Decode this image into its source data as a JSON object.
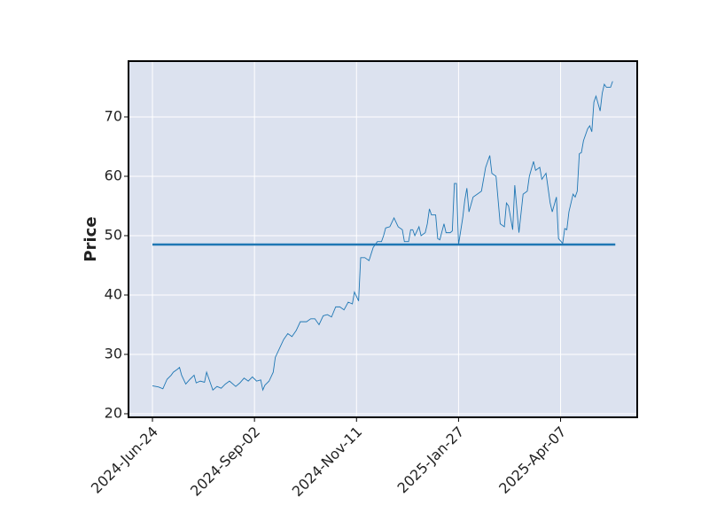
{
  "chart_data": {
    "type": "line",
    "ylabel": "Price",
    "x": [
      0,
      3,
      5,
      7,
      9,
      10,
      12,
      13,
      14,
      16,
      18,
      20,
      21,
      23,
      25,
      26,
      28,
      29,
      31,
      33,
      35,
      37,
      40,
      42,
      44,
      46,
      48,
      50,
      52,
      53,
      54,
      56,
      58,
      59,
      61,
      63,
      65,
      67,
      69,
      71,
      74,
      76,
      78,
      80,
      82,
      84,
      86,
      88,
      90,
      92,
      94,
      96,
      97,
      99,
      100,
      102,
      104,
      106,
      108,
      110,
      111,
      112,
      114,
      116,
      118,
      120,
      121,
      123,
      124,
      125,
      126,
      128,
      129,
      131,
      132,
      133,
      134,
      136,
      137,
      138,
      140,
      141,
      143,
      144,
      145,
      146,
      147,
      149,
      150,
      151,
      152,
      154,
      156,
      158,
      160,
      161,
      162,
      163,
      165,
      167,
      169,
      170,
      171,
      173,
      174,
      176,
      178,
      180,
      181,
      183,
      184,
      186,
      187,
      189,
      191,
      192,
      194,
      195,
      197,
      198,
      199,
      200,
      202,
      203,
      204,
      205,
      206,
      207,
      209,
      210,
      211,
      212,
      213,
      215,
      216,
      217,
      218,
      220,
      221
    ],
    "values": [
      24.7,
      24.5,
      24.2,
      25.8,
      26.5,
      27,
      27.5,
      27.8,
      26.5,
      25,
      25.8,
      26.5,
      25.2,
      25.5,
      25.3,
      27,
      25,
      24,
      24.6,
      24.3,
      25,
      25.5,
      24.6,
      25.2,
      26,
      25.5,
      26.2,
      25.5,
      25.7,
      24,
      24.8,
      25.5,
      27,
      29.5,
      31,
      32.5,
      33.5,
      33,
      34,
      35.5,
      35.5,
      36,
      36,
      35,
      36.5,
      36.7,
      36.3,
      38,
      38,
      37.5,
      38.8,
      38.5,
      40.5,
      39,
      46.3,
      46.3,
      45.8,
      48,
      49,
      49,
      50,
      51.3,
      51.5,
      53,
      51.5,
      51,
      49,
      49,
      51,
      51,
      50,
      51.5,
      50,
      50.5,
      52,
      54.5,
      53.5,
      53.5,
      49.5,
      49.3,
      52,
      50.5,
      50.5,
      50.8,
      58.8,
      58.8,
      48.5,
      53,
      56,
      58,
      54,
      56.5,
      57,
      57.5,
      61.5,
      62.5,
      63.5,
      60.5,
      60,
      52,
      51.5,
      55.5,
      55,
      51,
      58.5,
      50.5,
      57,
      57.5,
      60,
      62.5,
      61,
      61.5,
      59.5,
      60.5,
      55.5,
      54,
      56.5,
      49.5,
      48.7,
      51.2,
      51,
      54,
      57,
      56.5,
      57.5,
      63.8,
      64,
      66,
      68,
      68.5,
      67.5,
      72.5,
      73.5,
      71,
      74,
      75.5,
      75,
      75,
      76
    ],
    "color": "#1f77b4",
    "hline": {
      "value": 48.5,
      "color": "#1f77b4"
    },
    "xlim": [
      -11.5,
      232.8
    ],
    "xticks": [
      {
        "value": 0,
        "label": "2024-Jun-24"
      },
      {
        "value": 49,
        "label": "2024-Sep-02"
      },
      {
        "value": 98,
        "label": "2024-Nov-11"
      },
      {
        "value": 147,
        "label": "2025-Jan-27"
      },
      {
        "value": 196,
        "label": "2025-Apr-07"
      }
    ],
    "ylim": [
      19.4,
      79.4
    ],
    "yticks": [
      20,
      30,
      40,
      50,
      60,
      70
    ],
    "grid": true
  }
}
